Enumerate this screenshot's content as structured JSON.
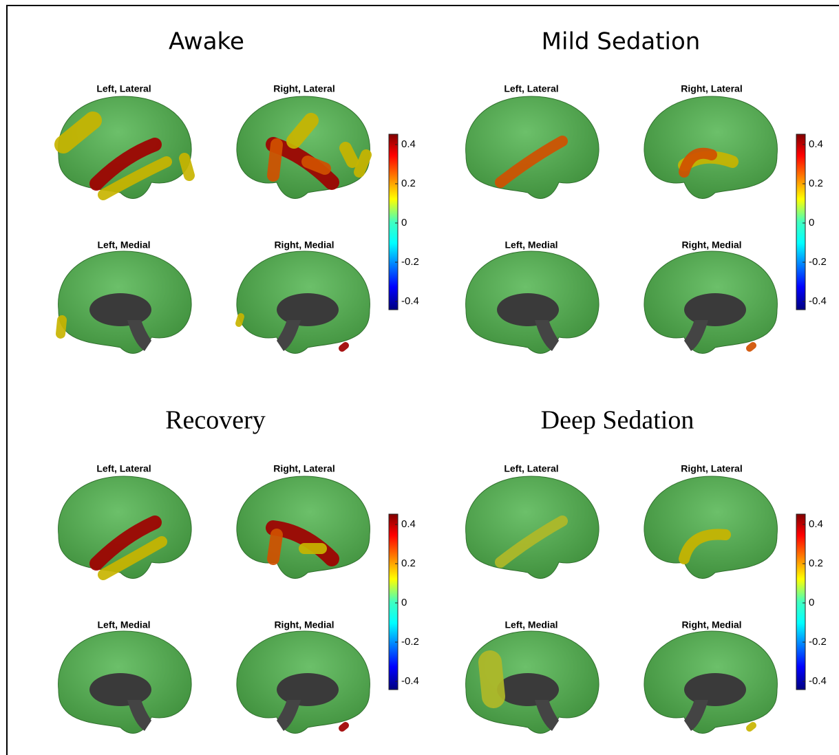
{
  "panels": [
    {
      "title": "Awake",
      "views": [
        "Left, Lateral",
        "Right, Lateral",
        "Left, Medial",
        "Right, Medial"
      ],
      "colorbar_ticks": [
        0.4,
        0.2,
        0,
        -0.2,
        -0.4
      ]
    },
    {
      "title": "Mild Sedation",
      "views": [
        "Left, Lateral",
        "Right, Lateral",
        "Left, Medial",
        "Right, Medial"
      ],
      "colorbar_ticks": [
        0.4,
        0.2,
        0,
        -0.2,
        -0.4
      ]
    },
    {
      "title": "Recovery",
      "views": [
        "Left, Lateral",
        "Right, Lateral",
        "Left, Medial",
        "Right, Medial"
      ],
      "colorbar_ticks": [
        0.4,
        0.2,
        0,
        -0.2,
        -0.4
      ]
    },
    {
      "title": "Deep Sedation",
      "views": [
        "Left, Lateral",
        "Right, Lateral",
        "Left, Medial",
        "Right, Medial"
      ],
      "colorbar_ticks": [
        0.4,
        0.2,
        0,
        -0.2,
        -0.4
      ]
    }
  ]
}
